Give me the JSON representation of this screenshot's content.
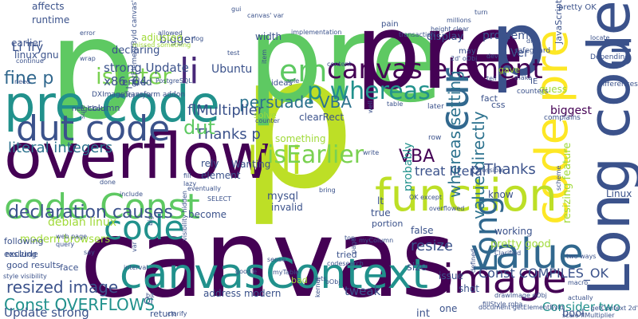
{
  "words": [
    {
      "t": "canvas",
      "c": "#440154"
    },
    {
      "t": "p",
      "c": "#bddf26"
    },
    {
      "t": "p",
      "c": "#5ec962"
    },
    {
      "t": "pre",
      "c": "#5ec962"
    },
    {
      "t": "pre",
      "c": "#440154"
    },
    {
      "t": "p",
      "c": "#3b528b"
    },
    {
      "t": "overflow",
      "c": "#440154"
    },
    {
      "t": "pre code",
      "c": "#21918c"
    },
    {
      "t": "code Const",
      "c": "#5ec962"
    },
    {
      "t": "canvasContext",
      "c": "#21918c"
    },
    {
      "t": "Long code",
      "c": "#3b528b"
    },
    {
      "t": "code pre",
      "c": "#fde725"
    },
    {
      "t": "function",
      "c": "#bddf26"
    },
    {
      "t": "dut code",
      "c": "#3b528b"
    },
    {
      "t": "canvas element",
      "c": "#440154"
    },
    {
      "t": "value",
      "c": "#31688e"
    },
    {
      "t": "image",
      "c": "#440154"
    },
    {
      "t": "cur",
      "c": "#31688e"
    },
    {
      "t": "li li",
      "c": "#bddf26"
    },
    {
      "t": "em",
      "c": "#5ec962"
    },
    {
      "t": "p whereas",
      "c": "#21918c"
    },
    {
      "t": "code",
      "c": "#21918c"
    },
    {
      "t": "Long",
      "c": "#31688e"
    },
    {
      "t": "ul",
      "c": "#3b528b"
    },
    {
      "t": "li",
      "c": "#482878"
    },
    {
      "t": "isEarlier",
      "c": "#7ad151"
    },
    {
      "t": "isLater",
      "c": "#7ad151"
    },
    {
      "t": "fine p",
      "c": "#31688e"
    },
    {
      "t": "persuade VBA",
      "c": "#2c728e"
    },
    {
      "t": "whereas setting",
      "c": "#2c728e"
    },
    {
      "t": "value directly",
      "c": "#2c728e"
    },
    {
      "t": "declaration causes",
      "c": "#3b528b"
    },
    {
      "t": "Thanks p",
      "c": "#3b528b"
    },
    {
      "t": "p Thanks",
      "c": "#3b528b"
    },
    {
      "t": "dut",
      "c": "#5ec962"
    },
    {
      "t": "VBA",
      "c": "#440154"
    },
    {
      "t": "Const OVERFLOWS",
      "c": "#21918c"
    },
    {
      "t": "Const COMPILES_OK",
      "c": "#3b528b"
    },
    {
      "t": "literal integers",
      "c": "#2c728e"
    },
    {
      "t": "treat literal",
      "c": "#3b528b"
    },
    {
      "t": "flMultiplier",
      "c": "#3b528b"
    },
    {
      "t": "resized image",
      "c": "#3b528b"
    },
    {
      "t": "Update strong",
      "c": "#3b528b"
    },
    {
      "t": "strong Update",
      "c": "#3b528b"
    },
    {
      "t": "Consider two",
      "c": "#21918c"
    },
    {
      "t": "resize",
      "c": "#3b528b"
    },
    {
      "t": "tweak",
      "c": "#3b528b"
    },
    {
      "t": "Li Try",
      "c": "#3b528b"
    },
    {
      "t": "x86_64",
      "c": "#3b528b"
    },
    {
      "t": "debian linux",
      "c": "#a0da39"
    },
    {
      "t": "modern browsers",
      "c": "#a0da39"
    },
    {
      "t": "resizing feature",
      "c": "#a0da39"
    },
    {
      "t": "probably",
      "c": "#21918c"
    },
    {
      "t": "biggest",
      "c": "#440154"
    },
    {
      "t": "mysql",
      "c": "#3b528b"
    },
    {
      "t": "linux gnu",
      "c": "#3b528b"
    },
    {
      "t": "earlier",
      "c": "#3b528b"
    },
    {
      "t": "runtime",
      "c": "#3b528b"
    },
    {
      "t": "affects",
      "c": "#3b528b"
    },
    {
      "t": "bigger",
      "c": "#3b528b"
    },
    {
      "t": "declaring",
      "c": "#3b528b"
    },
    {
      "t": "adjusted",
      "c": "#a0da39"
    },
    {
      "t": "Ubuntu",
      "c": "#3b528b"
    },
    {
      "t": "width",
      "c": "#3b528b"
    },
    {
      "t": "ended",
      "c": "#3b528b"
    },
    {
      "t": "problem",
      "c": "#3b528b"
    },
    {
      "t": "display",
      "c": "#3b528b"
    },
    {
      "t": "Ver",
      "c": "#3b528b"
    },
    {
      "t": "JavaScript",
      "c": "#3b528b"
    },
    {
      "t": "pretty good",
      "c": "#a0da39"
    },
    {
      "t": "size",
      "c": "#3b528b"
    },
    {
      "t": "int",
      "c": "#3b528b"
    },
    {
      "t": "bool",
      "c": "#3b528b"
    },
    {
      "t": "one",
      "c": "#3b528b"
    },
    {
      "t": "Linux",
      "c": "#3b528b"
    },
    {
      "t": "following",
      "c": "#3b528b"
    },
    {
      "t": "good results",
      "c": "#3b528b"
    },
    {
      "t": "exclude",
      "c": "#3b528b"
    },
    {
      "t": "face",
      "c": "#3b528b"
    },
    {
      "t": "become",
      "c": "#3b528b"
    },
    {
      "t": "invalid",
      "c": "#3b528b"
    },
    {
      "t": "element",
      "c": "#3b528b"
    },
    {
      "t": "rely",
      "c": "#3b528b"
    },
    {
      "t": "true",
      "c": "#3b528b"
    },
    {
      "t": "lt",
      "c": "#3b528b"
    },
    {
      "t": "false",
      "c": "#3b528b"
    },
    {
      "t": "know",
      "c": "#3b528b"
    },
    {
      "t": "working",
      "c": "#3b528b"
    },
    {
      "t": "address modern",
      "c": "#3b528b"
    },
    {
      "t": "Wanting",
      "c": "#3b528b"
    },
    {
      "t": "something",
      "c": "#a0da39"
    },
    {
      "t": "solve",
      "c": "#a0da39"
    },
    {
      "t": "gave",
      "c": "#a0da39"
    },
    {
      "t": "guess",
      "c": "#a0da39"
    },
    {
      "t": "Ol",
      "c": "#3b528b"
    },
    {
      "t": "return",
      "c": "#3b528b"
    },
    {
      "t": "issue",
      "c": "#3b528b"
    },
    {
      "t": "bad",
      "c": "#a0da39"
    },
    {
      "t": "tried",
      "c": "#3b528b"
    },
    {
      "t": "clearRect",
      "c": "#3b528b"
    },
    {
      "t": "portion",
      "c": "#3b528b"
    },
    {
      "t": "column",
      "c": "#3b528b"
    },
    {
      "t": "css",
      "c": "#3b528b"
    },
    {
      "t": "shot",
      "c": "#3b528b"
    },
    {
      "t": "fact",
      "c": "#3b528b"
    },
    {
      "t": "ideas",
      "c": "#3b528b"
    },
    {
      "t": "IE",
      "c": "#3b528b"
    },
    {
      "t": "pretty OK",
      "c": "#3b528b"
    },
    {
      "t": "getElementById canvas'",
      "c": "#3b528b"
    },
    {
      "t": "resizing",
      "c": "#3b528b"
    },
    {
      "t": "pain",
      "c": "#3b528b"
    },
    {
      "t": "may",
      "c": "#3b528b"
    },
    {
      "t": "DXImageTransform addon",
      "c": "#3b528b"
    },
    {
      "t": "neighbor",
      "c": "#3b528b"
    },
    {
      "t": "counters",
      "c": "#3b528b"
    },
    {
      "t": "complains",
      "c": "#3b528b"
    },
    {
      "t": "differences",
      "c": "#3b528b"
    },
    {
      "t": "Depending",
      "c": "#3b528b"
    },
    {
      "t": "safeguard",
      "c": "#3b528b"
    },
    {
      "t": "later",
      "c": "#3b528b"
    },
    {
      "t": "row",
      "c": "#3b528b"
    },
    {
      "t": "well",
      "c": "#3b528b"
    },
    {
      "t": "Clarified",
      "c": "#3b528b"
    },
    {
      "t": "drawImage oObj",
      "c": "#3b528b"
    },
    {
      "t": "getContext 2d'",
      "c": "#3b528b"
    },
    {
      "t": "fillStyle rgba",
      "c": "#3b528b"
    },
    {
      "t": "scale flMultiplier",
      "c": "#3b528b"
    },
    {
      "t": "document getElementById",
      "c": "#3b528b"
    },
    {
      "t": "oObj style",
      "c": "#3b528b"
    },
    {
      "t": "style visibility",
      "c": "#3b528b"
    },
    {
      "t": "visibility hidden",
      "c": "#3b528b"
    },
    {
      "t": "canvas' var",
      "c": "#3b528b"
    },
    {
      "t": "implementation",
      "c": "#3b528b"
    },
    {
      "t": "height clear",
      "c": "#3b528b"
    },
    {
      "t": "transaction",
      "c": "#3b528b"
    },
    {
      "t": "millions",
      "c": "#3b528b"
    },
    {
      "t": "missed something",
      "c": "#a0da39"
    },
    {
      "t": "PostgreSQL",
      "c": "#3b528b"
    },
    {
      "t": "OK except",
      "c": "#3b528b"
    },
    {
      "t": "overflowed",
      "c": "#3b528b"
    },
    {
      "t": "two ways",
      "c": "#3b528b"
    },
    {
      "t": "macro",
      "c": "#3b528b"
    },
    {
      "t": "actually",
      "c": "#3b528b"
    },
    {
      "t": "myColumn",
      "c": "#3b528b"
    },
    {
      "t": "web page",
      "c": "#3b528b"
    },
    {
      "t": "query",
      "c": "#3b528b"
    },
    {
      "t": "say",
      "c": "#3b528b"
    },
    {
      "t": "google",
      "c": "#3b528b"
    },
    {
      "t": "sense",
      "c": "#3b528b"
    },
    {
      "t": "interval",
      "c": "#3b528b"
    },
    {
      "t": "codesearch",
      "c": "#3b528b"
    },
    {
      "t": "SELECT",
      "c": "#3b528b"
    },
    {
      "t": "eventually",
      "c": "#3b528b"
    },
    {
      "t": "include",
      "c": "#3b528b"
    },
    {
      "t": "lazy",
      "c": "#3b528b"
    },
    {
      "t": "fill",
      "c": "#3b528b"
    },
    {
      "t": "lets",
      "c": "#3b528b"
    },
    {
      "t": "myTable",
      "c": "#3b528b"
    },
    {
      "t": "bring",
      "c": "#3b528b"
    },
    {
      "t": "top",
      "c": "#3b528b"
    },
    {
      "t": "scheme",
      "c": "#3b528b"
    },
    {
      "t": "Possible",
      "c": "#3b528b"
    },
    {
      "t": "device",
      "c": "#3b528b"
    },
    {
      "t": "content",
      "c": "#3b528b"
    },
    {
      "t": "wrap",
      "c": "#3b528b"
    },
    {
      "t": "role",
      "c": "#3b528b"
    },
    {
      "t": "need",
      "c": "#3b528b"
    },
    {
      "t": "continue",
      "c": "#3b528b"
    },
    {
      "t": "gui",
      "c": "#3b528b"
    },
    {
      "t": "test",
      "c": "#3b528b"
    },
    {
      "t": "allowed",
      "c": "#3b528b"
    },
    {
      "t": "error",
      "c": "#3b528b"
    },
    {
      "t": "turn",
      "c": "#3b528b"
    },
    {
      "t": "make",
      "c": "#3b528b"
    },
    {
      "t": "tell",
      "c": "#3b528b"
    },
    {
      "t": "div",
      "c": "#3b528b"
    },
    {
      "t": "locate",
      "c": "#3b528b"
    },
    {
      "t": "log",
      "c": "#3b528b"
    },
    {
      "t": "2d' oObj",
      "c": "#3b528b"
    },
    {
      "t": "item",
      "c": "#3b528b"
    },
    {
      "t": "table",
      "c": "#3b528b"
    },
    {
      "t": "counter",
      "c": "#3b528b"
    },
    {
      "t": "big",
      "c": "#3b528b"
    },
    {
      "t": "var",
      "c": "#3b528b"
    },
    {
      "t": "sure",
      "c": "#3b528b"
    },
    {
      "t": "page",
      "c": "#3b528b"
    },
    {
      "t": "write",
      "c": "#3b528b"
    },
    {
      "t": "oObj",
      "c": "#3b528b"
    },
    {
      "t": "kernel",
      "c": "#3b528b"
    },
    {
      "t": "bit",
      "c": "#3b528b"
    },
    {
      "t": "clarify",
      "c": "#3b528b"
    },
    {
      "t": "done",
      "c": "#3b528b"
    },
    {
      "t": "defined",
      "c": "#3b528b"
    }
  ]
}
